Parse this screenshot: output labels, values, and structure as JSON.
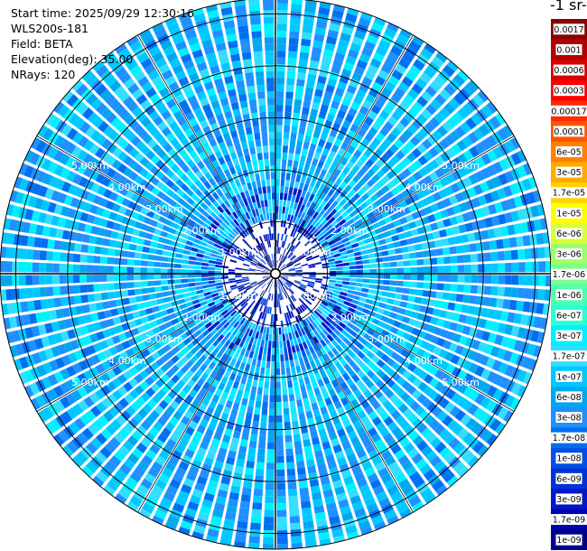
{
  "info": {
    "start_time": "Start time: 2025/09/29 12:30:16",
    "device": "WLS200s-181",
    "field": "Field: BETA",
    "elevation": "Elevation(deg): 35.00",
    "nrays": "NRays: 120"
  },
  "unit_label": "-1 sr-",
  "chart_data": {
    "type": "heatmap",
    "projection": "polar",
    "n_rays": 120,
    "max_range_km": 5.3,
    "range_rings_km": [
      0.1,
      1.0,
      2.0,
      3.0,
      4.0,
      5.0
    ],
    "ring_labels": [
      "1.00km",
      "2.00km",
      "3.00km",
      "4.00km",
      "5.00km"
    ],
    "spokes_deg": [
      0,
      30,
      60,
      90,
      120,
      150,
      180,
      210,
      240,
      270,
      300,
      330
    ],
    "colorbar": {
      "scale": "log",
      "tick_labels": [
        "0.0017",
        "0.001",
        "0.0006",
        "0.0003",
        "0.00017",
        "0.0001",
        "6e-05",
        "3e-05",
        "1.7e-05",
        "1e-05",
        "6e-06",
        "3e-06",
        "1.7e-06",
        "1e-06",
        "6e-07",
        "3e-07",
        "1.7e-07",
        "1e-07",
        "6e-08",
        "3e-08",
        "1.7e-08",
        "1e-08",
        "6e-09",
        "3e-09",
        "1.7e-09",
        "1e-09"
      ],
      "colors": [
        "#8b0000",
        "#b30000",
        "#d60000",
        "#ff0000",
        "#ff2a00",
        "#ff5500",
        "#ff8000",
        "#ffaa00",
        "#ffd200",
        "#ffff00",
        "#d8ff3a",
        "#9dff6a",
        "#7cff8a",
        "#4dffb0",
        "#2affd6",
        "#00f0ff",
        "#33ddff",
        "#00c8ff",
        "#00a8f0",
        "#1e90ff",
        "#0070f0",
        "#0050e6",
        "#0032d8",
        "#0018c8",
        "#0000b0",
        "#00008b"
      ]
    },
    "dominant_value_range": [
      "3e-08",
      "1.7e-07"
    ],
    "near_field_value_range": [
      "1e-09",
      "6e-09"
    ],
    "grid": true
  }
}
